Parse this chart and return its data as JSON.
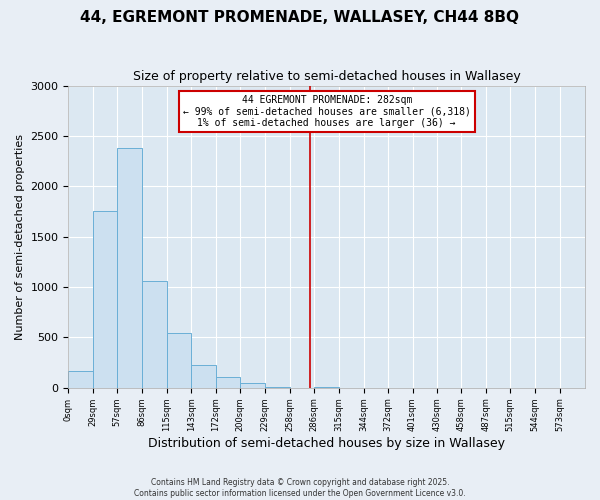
{
  "title": "44, EGREMONT PROMENADE, WALLASEY, CH44 8BQ",
  "subtitle": "Size of property relative to semi-detached houses in Wallasey",
  "xlabel": "Distribution of semi-detached houses by size in Wallasey",
  "ylabel": "Number of semi-detached properties",
  "bin_edges": [
    0,
    29,
    57,
    86,
    115,
    143,
    172,
    200,
    229,
    258,
    286,
    315,
    344,
    372,
    401,
    430,
    458,
    487,
    515,
    544,
    573,
    602
  ],
  "bin_heights": [
    170,
    1760,
    2380,
    1060,
    540,
    230,
    110,
    50,
    10,
    0,
    10,
    0,
    0,
    0,
    0,
    0,
    0,
    0,
    0,
    0,
    0
  ],
  "bar_color": "#cce0f0",
  "bar_edge_color": "#6aafd6",
  "vline_x": 282,
  "vline_color": "#cc0000",
  "annotation_title": "44 EGREMONT PROMENADE: 282sqm",
  "annotation_line1": "← 99% of semi-detached houses are smaller (6,318)",
  "annotation_line2": "1% of semi-detached houses are larger (36) →",
  "annotation_box_color": "#ffffff",
  "annotation_box_edge": "#cc0000",
  "ylim": [
    0,
    3000
  ],
  "yticks": [
    0,
    500,
    1000,
    1500,
    2000,
    2500,
    3000
  ],
  "tick_labels": [
    "0sqm",
    "29sqm",
    "57sqm",
    "86sqm",
    "115sqm",
    "143sqm",
    "172sqm",
    "200sqm",
    "229sqm",
    "258sqm",
    "286sqm",
    "315sqm",
    "344sqm",
    "372sqm",
    "401sqm",
    "430sqm",
    "458sqm",
    "487sqm",
    "515sqm",
    "544sqm",
    "573sqm"
  ],
  "footer_line1": "Contains HM Land Registry data © Crown copyright and database right 2025.",
  "footer_line2": "Contains public sector information licensed under the Open Government Licence v3.0.",
  "fig_bg_color": "#e8eef5",
  "plot_bg_color": "#dce8f2",
  "grid_color": "#ffffff",
  "title_fontsize": 11,
  "subtitle_fontsize": 9
}
